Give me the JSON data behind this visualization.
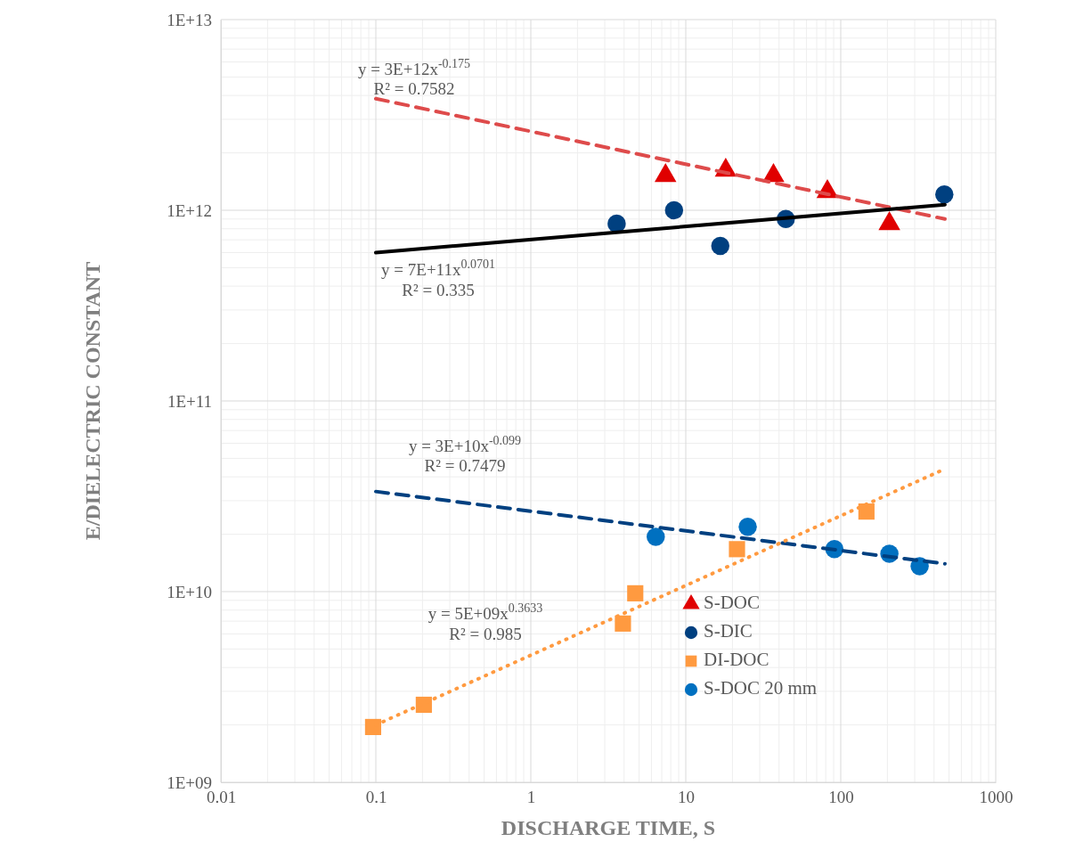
{
  "chart_data": {
    "type": "scatter",
    "xlabel": "DISCHARGE TIME, S",
    "ylabel": "E/DIELECTRIC CONSTANT",
    "log": "xy",
    "grid": true,
    "legend": "bottom",
    "xlim": [
      0.01,
      1000
    ],
    "xticks": [
      0.01,
      0.1,
      1,
      10,
      100,
      1000
    ],
    "ylim": [
      1000000000.0,
      10000000000000.0
    ],
    "yticks": [
      {
        "value": 1000000000.0,
        "label": "1E+09"
      },
      {
        "value": 10000000000.0,
        "label": "1E+10"
      },
      {
        "value": 100000000000.0,
        "label": "1E+11"
      },
      {
        "value": 1000000000000.0,
        "label": "1E+12"
      },
      {
        "value": 10000000000000.0,
        "label": "1E+13"
      }
    ],
    "series": [
      {
        "name": "S-DOC",
        "color": "#e00000",
        "marker": "triangle",
        "x": [
          7.4,
          18.1,
          36.8,
          82,
          206
        ],
        "values": [
          1520000000000.0,
          1620000000000.0,
          1520000000000.0,
          1250000000000.0,
          850000000000.0
        ]
      },
      {
        "name": "S-DIC",
        "color": "#004080",
        "marker": "circle",
        "x": [
          3.58,
          8.4,
          16.7,
          44.2,
          466
        ],
        "values": [
          850000000000.0,
          1000000000000.0,
          650000000000.0,
          900000000000.0,
          1210000000000.0
        ]
      },
      {
        "name": "DI-DOC",
        "color": "#ff9a40",
        "marker": "square",
        "x": [
          0.096,
          0.204,
          3.93,
          4.72,
          21.4,
          146.5
        ],
        "values": [
          1950000000.0,
          2550000000.0,
          6800000000.0,
          9800000000.0,
          16700000000.0,
          26300000000.0
        ]
      },
      {
        "name": "S-DOC 20 mm",
        "color": "#0070c0",
        "marker": "circle",
        "x": [
          6.4,
          25.1,
          91,
          206,
          323
        ],
        "values": [
          19400000000.0,
          21900000000.0,
          16700000000.0,
          15800000000.0,
          13600000000.0
        ]
      },
      {
        "type": "line",
        "color": "#de4b4b",
        "line_style": "dashed",
        "marker": "none",
        "x": [
          0.1,
          470
        ],
        "values": [
          3850000000000.0,
          900000000000.0
        ]
      },
      {
        "type": "line",
        "color": "#000000",
        "line_style": "solid",
        "marker": "none",
        "x": [
          0.1,
          470
        ],
        "values": [
          600000000000.0,
          1070000000000.0
        ]
      },
      {
        "type": "line",
        "color": "#004080",
        "line_style": "dashed",
        "marker": "none",
        "x": [
          0.1,
          470
        ],
        "values": [
          33500000000.0,
          14000000000.0
        ]
      },
      {
        "type": "line",
        "color": "#ff9a40",
        "line_style": "dotted",
        "marker": "none",
        "x": [
          0.1,
          470
        ],
        "values": [
          2000000000.0,
          44000000000.0
        ]
      }
    ],
    "annotations": [
      "y = 3E+12x$^{-0.175}$",
      "R² = 0.7582",
      "y = 7E+11x$^{0.0701}$",
      "R² = 0.335",
      "y = 3E+10x$^{-0.099}$",
      "R² = 0.7479",
      "y = 5E+09x$^{0.3633}$",
      "R² = 0.985"
    ]
  }
}
